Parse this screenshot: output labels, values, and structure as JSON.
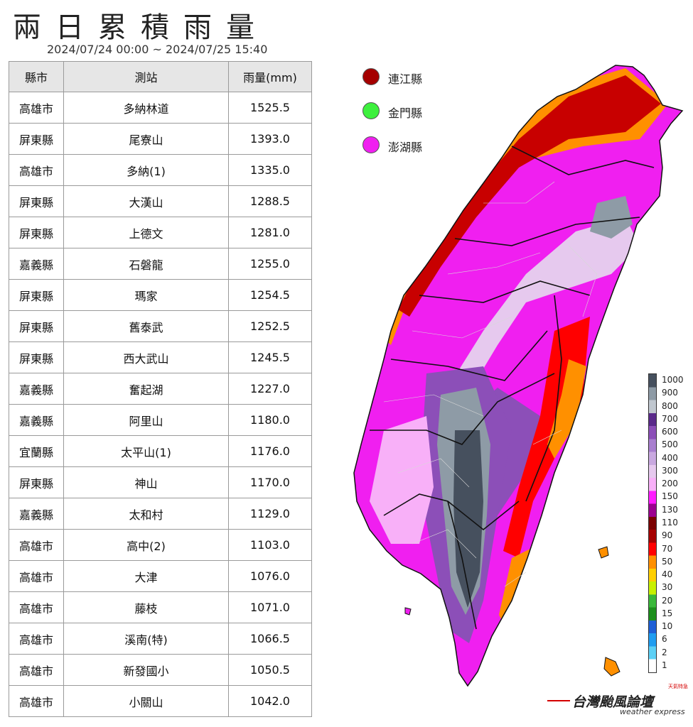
{
  "title": "兩日累積雨量",
  "period": "2024/07/24 00:00 ~ 2024/07/25 15:40",
  "table": {
    "headers": [
      "縣市",
      "測站",
      "雨量(mm)"
    ],
    "rows": [
      [
        "高雄市",
        "多納林道",
        "1525.5"
      ],
      [
        "屏東縣",
        "尾寮山",
        "1393.0"
      ],
      [
        "高雄市",
        "多納(1)",
        "1335.0"
      ],
      [
        "屏東縣",
        "大漢山",
        "1288.5"
      ],
      [
        "屏東縣",
        "上德文",
        "1281.0"
      ],
      [
        "嘉義縣",
        "石磐龍",
        "1255.0"
      ],
      [
        "屏東縣",
        "瑪家",
        "1254.5"
      ],
      [
        "屏東縣",
        "舊泰武",
        "1252.5"
      ],
      [
        "屏東縣",
        "西大武山",
        "1245.5"
      ],
      [
        "嘉義縣",
        "奮起湖",
        "1227.0"
      ],
      [
        "嘉義縣",
        "阿里山",
        "1180.0"
      ],
      [
        "宜蘭縣",
        "太平山(1)",
        "1176.0"
      ],
      [
        "屏東縣",
        "神山",
        "1170.0"
      ],
      [
        "嘉義縣",
        "太和村",
        "1129.0"
      ],
      [
        "高雄市",
        "高中(2)",
        "1103.0"
      ],
      [
        "高雄市",
        "大津",
        "1076.0"
      ],
      [
        "高雄市",
        "藤枝",
        "1071.0"
      ],
      [
        "高雄市",
        "溪南(特)",
        "1066.5"
      ],
      [
        "高雄市",
        "新發國小",
        "1050.5"
      ],
      [
        "高雄市",
        "小關山",
        "1042.0"
      ]
    ]
  },
  "island_legend": [
    {
      "name": "連江縣",
      "color": "#a50000"
    },
    {
      "name": "金門縣",
      "color": "#3df03d"
    },
    {
      "name": "澎湖縣",
      "color": "#f01ff0"
    }
  ],
  "colorbar": {
    "labels": [
      "1000",
      "900",
      "800",
      "700",
      "600",
      "500",
      "400",
      "300",
      "200",
      "150",
      "130",
      "110",
      "90",
      "70",
      "50",
      "40",
      "30",
      "20",
      "15",
      "10",
      "6",
      "2",
      "1"
    ],
    "colors": [
      "#46505e",
      "#8e9ba6",
      "#c0c7cf",
      "#5a2a8a",
      "#8c4fb8",
      "#a97fcf",
      "#c9a9e0",
      "#e6c9ee",
      "#f8b0f8",
      "#ff1dff",
      "#9c0090",
      "#7a0000",
      "#a50000",
      "#ff0000",
      "#ff9000",
      "#ffcf00",
      "#c8f000",
      "#3ab83a",
      "#1c8f1c",
      "#1e5fd6",
      "#1f9df0",
      "#5cd0f5",
      "#ffffff"
    ]
  },
  "watermark": {
    "name": "台灣颱風論壇",
    "sub": "weather express",
    "tag": "天氣特急"
  }
}
